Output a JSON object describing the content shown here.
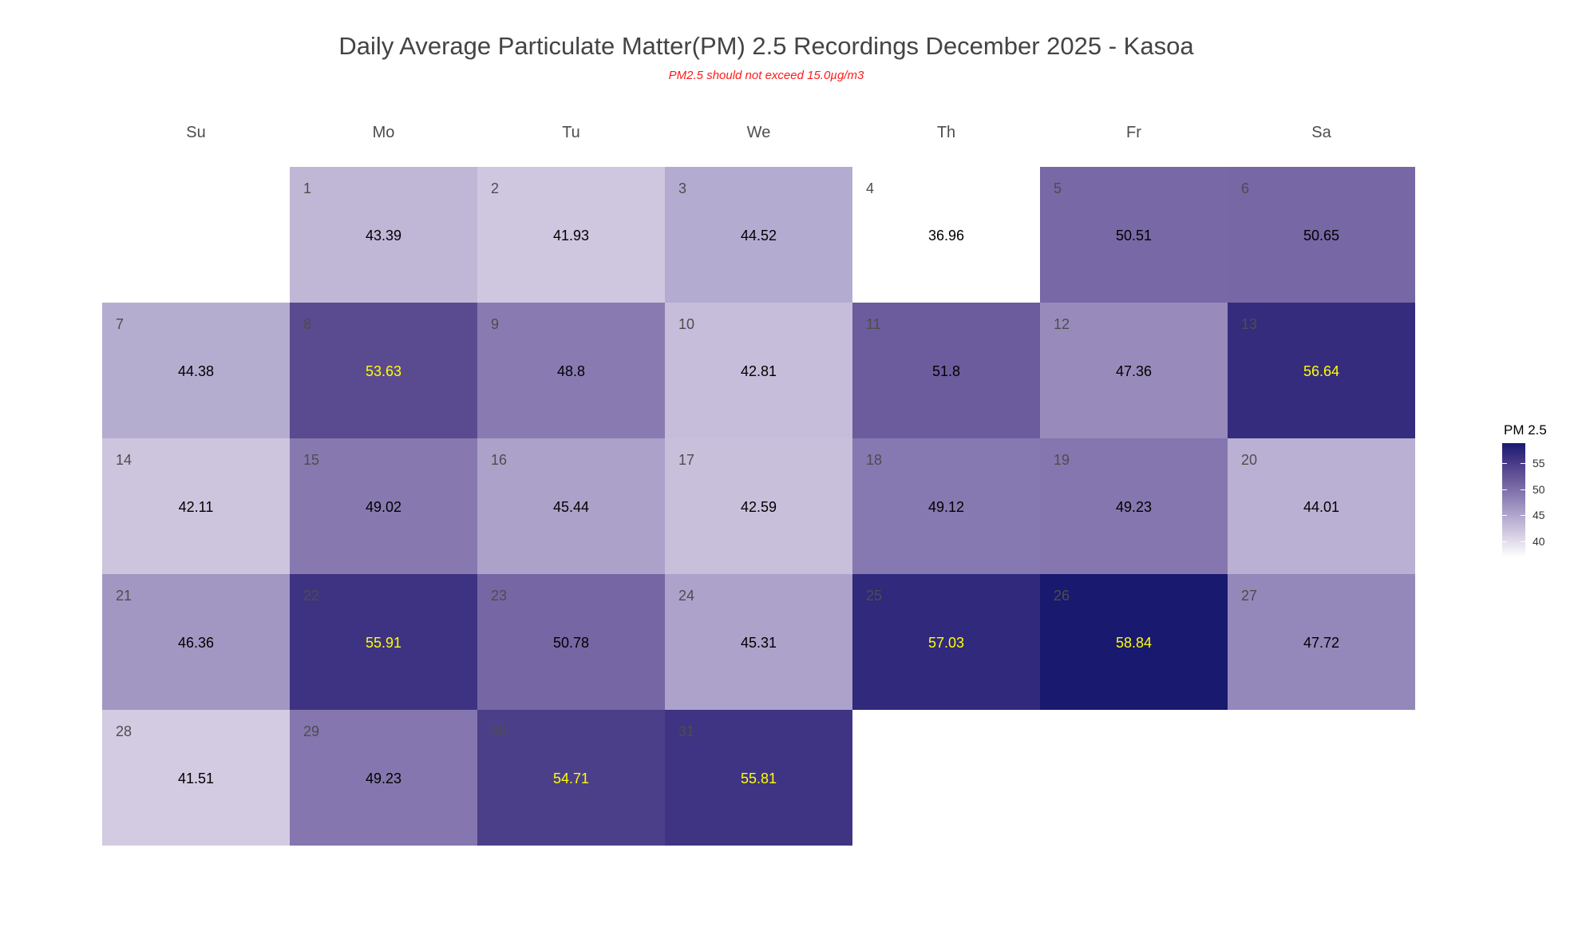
{
  "chart_data": {
    "type": "heatmap",
    "title": "Daily Average Particulate Matter(PM) 2.5 Recordings December 2025 -  Kasoa",
    "subtitle": "PM2.5 should not exceed 15.0µg/m3",
    "weekdays": [
      "Su",
      "Mo",
      "Tu",
      "We",
      "Th",
      "Fr",
      "Sa"
    ],
    "first_weekday_index": 1,
    "days": [
      {
        "day": "1",
        "value": 43.39,
        "label": "43.39"
      },
      {
        "day": "2",
        "value": 41.93,
        "label": "41.93"
      },
      {
        "day": "3",
        "value": 44.52,
        "label": "44.52"
      },
      {
        "day": "4",
        "value": 36.96,
        "label": "36.96"
      },
      {
        "day": "5",
        "value": 50.51,
        "label": "50.51"
      },
      {
        "day": "6",
        "value": 50.65,
        "label": "50.65"
      },
      {
        "day": "7",
        "value": 44.38,
        "label": "44.38"
      },
      {
        "day": "8",
        "value": 53.63,
        "label": "53.63"
      },
      {
        "day": "9",
        "value": 48.8,
        "label": "48.8"
      },
      {
        "day": "10",
        "value": 42.81,
        "label": "42.81"
      },
      {
        "day": "11",
        "value": 51.8,
        "label": "51.8"
      },
      {
        "day": "12",
        "value": 47.36,
        "label": "47.36"
      },
      {
        "day": "13",
        "value": 56.64,
        "label": "56.64"
      },
      {
        "day": "14",
        "value": 42.11,
        "label": "42.11"
      },
      {
        "day": "15",
        "value": 49.02,
        "label": "49.02"
      },
      {
        "day": "16",
        "value": 45.44,
        "label": "45.44"
      },
      {
        "day": "17",
        "value": 42.59,
        "label": "42.59"
      },
      {
        "day": "18",
        "value": 49.12,
        "label": "49.12"
      },
      {
        "day": "19",
        "value": 49.23,
        "label": "49.23"
      },
      {
        "day": "20",
        "value": 44.01,
        "label": "44.01"
      },
      {
        "day": "21",
        "value": 46.36,
        "label": "46.36"
      },
      {
        "day": "22",
        "value": 55.91,
        "label": "55.91"
      },
      {
        "day": "23",
        "value": 50.78,
        "label": "50.78"
      },
      {
        "day": "24",
        "value": 45.31,
        "label": "45.31"
      },
      {
        "day": "25",
        "value": 57.03,
        "label": "57.03"
      },
      {
        "day": "26",
        "value": 58.84,
        "label": "58.84"
      },
      {
        "day": "27",
        "value": 47.72,
        "label": "47.72"
      },
      {
        "day": "28",
        "value": 41.51,
        "label": "41.51"
      },
      {
        "day": "29",
        "value": 49.23,
        "label": "49.23"
      },
      {
        "day": "30",
        "value": 54.71,
        "label": "54.71"
      },
      {
        "day": "31",
        "value": 55.81,
        "label": "55.81"
      }
    ],
    "value_label_threshold": 53,
    "legend": {
      "title": "PM 2.5",
      "ticks": [
        "55",
        "50",
        "45",
        "40"
      ],
      "tick_values": [
        55,
        50,
        45,
        40
      ],
      "range": [
        36.96,
        58.84
      ],
      "placement": "right"
    },
    "colors": {
      "low": "#ffffff",
      "high": "#191970",
      "label_light": "#ffff00",
      "label_dark": "#000000",
      "subtitle": "#ff1a1a"
    }
  }
}
